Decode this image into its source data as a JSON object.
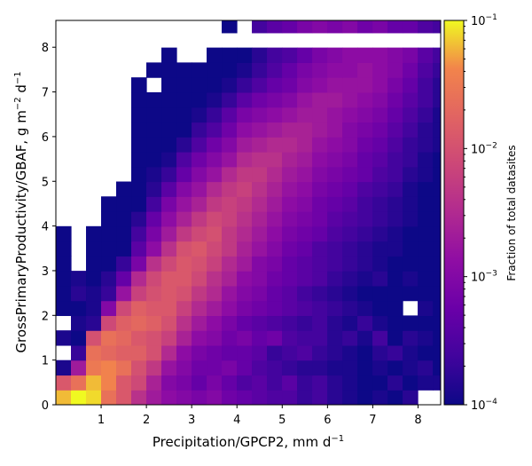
{
  "chart_data": {
    "type": "heatmap",
    "xlabel": "Precipitation/GPCP2,  mm d",
    "xlabel_sup": "−1",
    "ylabel": "GrossPrimaryProductivity/GBAF,  g m",
    "ylabel_sup1": "−2",
    "ylabel_mid": " d",
    "ylabel_sup2": "−1",
    "xlim": [
      0,
      8.5
    ],
    "ylim": [
      0,
      8.6
    ],
    "xticks": [
      1,
      2,
      3,
      4,
      5,
      6,
      7,
      8
    ],
    "yticks": [
      0,
      1,
      2,
      3,
      4,
      5,
      6,
      7,
      8
    ],
    "bin_width_x": 0.333,
    "bin_height_y": 0.333,
    "colorbar": {
      "label": "Fraction of total datasites",
      "scale": "log",
      "colormap": "plasma",
      "range": [
        0.0001,
        0.1
      ],
      "ticks": [
        {
          "base": "10",
          "exp": "−1"
        },
        {
          "base": "10",
          "exp": "−2"
        },
        {
          "base": "10",
          "exp": "−3"
        },
        {
          "base": "10",
          "exp": "−4"
        }
      ]
    },
    "grid": false,
    "note": "values are log10(fraction of total datasites); null means empty bin",
    "rows_bottom_to_top": [
      [
        -1.2,
        -1.0,
        -1.1,
        -1.6,
        -1.9,
        -2.4,
        -2.7,
        -2.9,
        -3.0,
        -3.1,
        -3.0,
        -3.2,
        -3.3,
        -3.4,
        -3.5,
        -3.5,
        -3.7,
        -3.6,
        -3.8,
        -3.9,
        -4.0,
        -3.9,
        -4.0,
        -3.8,
        null,
        null
      ],
      [
        -1.9,
        -1.6,
        -1.2,
        -1.4,
        -1.9,
        -2.1,
        -2.6,
        -3.0,
        -3.1,
        -3.3,
        -3.1,
        -3.3,
        -3.5,
        -3.4,
        -3.6,
        -3.4,
        -3.7,
        -3.6,
        -3.8,
        -3.9,
        -4.0,
        -4.0,
        -3.8,
        -4.0,
        -3.9,
        -3.9
      ],
      [
        -3.9,
        -2.7,
        -1.5,
        -1.4,
        -1.6,
        -2.0,
        -2.3,
        -2.8,
        -3.0,
        -3.2,
        -3.2,
        -3.1,
        -3.3,
        -3.5,
        -3.6,
        -3.7,
        -3.8,
        -3.8,
        -3.9,
        -3.9,
        -4.0,
        -3.9,
        -4.0,
        -3.9,
        -3.8,
        -4.0
      ],
      [
        null,
        -3.7,
        -1.6,
        -1.7,
        -1.8,
        -1.8,
        -2.0,
        -2.5,
        -2.9,
        -3.1,
        -3.2,
        -3.3,
        -3.3,
        -3.4,
        -3.7,
        -3.6,
        -3.5,
        -3.7,
        -3.8,
        -3.9,
        -4.0,
        -3.8,
        -3.7,
        -3.9,
        -4.0,
        -4.0
      ],
      [
        -3.9,
        -4.0,
        -2.0,
        -1.6,
        -1.7,
        -1.9,
        -2.0,
        -2.2,
        -2.6,
        -2.9,
        -3.0,
        -3.2,
        -3.1,
        -3.3,
        -3.2,
        -3.5,
        -3.6,
        -3.6,
        -3.8,
        -3.7,
        -3.9,
        -3.6,
        -4.0,
        -3.8,
        -3.9,
        -4.0
      ],
      [
        null,
        -3.9,
        -3.8,
        -2.1,
        -1.8,
        -1.7,
        -1.8,
        -2.0,
        -2.4,
        -2.7,
        -2.9,
        -3.1,
        -3.3,
        -3.4,
        -3.5,
        -3.6,
        -3.7,
        -3.6,
        -3.8,
        -3.9,
        -3.7,
        -3.9,
        -4.0,
        -4.0,
        -4.0,
        -4.0
      ],
      [
        -4.0,
        -4.0,
        -3.9,
        -3.0,
        -2.1,
        -1.8,
        -1.9,
        -1.9,
        -2.2,
        -2.5,
        -2.7,
        -2.9,
        -3.1,
        -3.2,
        -3.3,
        -3.4,
        -3.5,
        -3.6,
        -3.7,
        -3.8,
        -3.9,
        -4.0,
        -4.0,
        null,
        -3.9,
        -4.0
      ],
      [
        -4.0,
        -3.8,
        -3.9,
        -3.7,
        -2.8,
        -2.2,
        -2.0,
        -1.9,
        -2.0,
        -2.3,
        -2.5,
        -2.8,
        -3.0,
        -3.1,
        -3.3,
        -3.4,
        -3.6,
        -3.7,
        -3.8,
        -3.9,
        -4.0,
        -4.0,
        -4.0,
        -4.0,
        -4.0,
        -4.0
      ],
      [
        -4.0,
        -3.9,
        -4.0,
        -3.8,
        -3.3,
        -2.5,
        -2.1,
        -1.9,
        -1.9,
        -2.1,
        -2.4,
        -2.6,
        -2.9,
        -3.0,
        -3.2,
        -3.3,
        -3.4,
        -3.5,
        -3.7,
        -3.8,
        -3.9,
        -3.8,
        -4.0,
        -3.9,
        -4.0,
        -4.0
      ],
      [
        -4.0,
        null,
        -4.0,
        -4.0,
        -3.7,
        -3.1,
        -2.4,
        -2.1,
        -1.9,
        -2.0,
        -2.2,
        -2.5,
        -2.7,
        -3.0,
        -3.1,
        -3.3,
        -3.4,
        -3.5,
        -3.6,
        -3.7,
        -3.8,
        -3.9,
        -4.0,
        -4.0,
        -4.0,
        -4.0
      ],
      [
        -4.0,
        null,
        -4.0,
        -4.0,
        -4.0,
        -3.4,
        -2.9,
        -2.4,
        -2.0,
        -1.9,
        -2.1,
        -2.3,
        -2.6,
        -2.8,
        -3.0,
        -3.2,
        -3.3,
        -3.5,
        -3.6,
        -3.7,
        -3.8,
        -3.9,
        -3.9,
        -4.0,
        -4.0,
        -4.0
      ],
      [
        -4.0,
        null,
        -4.0,
        -4.0,
        -4.0,
        -3.6,
        -3.1,
        -2.7,
        -2.3,
        -2.1,
        -2.0,
        -2.3,
        -2.5,
        -2.7,
        -2.9,
        -3.1,
        -3.2,
        -3.3,
        -3.5,
        -3.6,
        -3.7,
        -3.8,
        -3.9,
        -4.0,
        -4.0,
        -4.0
      ],
      [
        null,
        null,
        null,
        -4.0,
        -4.0,
        -3.8,
        -3.3,
        -2.9,
        -2.6,
        -2.3,
        -2.1,
        -2.2,
        -2.4,
        -2.6,
        -2.8,
        -3.0,
        -3.1,
        -3.2,
        -3.4,
        -3.5,
        -3.6,
        -3.7,
        -3.8,
        -3.9,
        -4.0,
        -4.0
      ],
      [
        null,
        null,
        null,
        -4.0,
        -4.0,
        -4.0,
        -3.6,
        -3.1,
        -2.8,
        -2.6,
        -2.3,
        -2.2,
        -2.3,
        -2.5,
        -2.7,
        -2.9,
        -3.0,
        -3.2,
        -3.3,
        -3.4,
        -3.6,
        -3.7,
        -3.8,
        -3.9,
        -4.0,
        -4.0
      ],
      [
        null,
        null,
        null,
        null,
        -4.0,
        -4.0,
        -3.8,
        -3.4,
        -3.0,
        -2.8,
        -2.5,
        -2.3,
        -2.2,
        -2.4,
        -2.6,
        -2.8,
        -2.9,
        -3.1,
        -3.2,
        -3.3,
        -3.5,
        -3.6,
        -3.7,
        -3.9,
        -4.0,
        -4.0
      ],
      [
        null,
        null,
        null,
        null,
        null,
        -4.0,
        -3.9,
        -3.7,
        -3.3,
        -3.0,
        -2.8,
        -2.5,
        -2.3,
        -2.3,
        -2.5,
        -2.7,
        -2.8,
        -3.0,
        -3.1,
        -3.2,
        -3.3,
        -3.5,
        -3.6,
        -3.8,
        -3.9,
        -4.0
      ],
      [
        null,
        null,
        null,
        null,
        null,
        -4.0,
        -4.0,
        -3.9,
        -3.5,
        -3.2,
        -3.0,
        -2.8,
        -2.5,
        -2.4,
        -2.4,
        -2.6,
        -2.7,
        -2.9,
        -3.0,
        -3.1,
        -3.3,
        -3.4,
        -3.6,
        -3.7,
        -3.9,
        -4.0
      ],
      [
        null,
        null,
        null,
        null,
        null,
        -4.0,
        -4.0,
        -4.0,
        -3.8,
        -3.5,
        -3.2,
        -3.0,
        -2.7,
        -2.6,
        -2.5,
        -2.5,
        -2.6,
        -2.8,
        -2.9,
        -3.0,
        -3.2,
        -3.3,
        -3.5,
        -3.7,
        -3.8,
        -3.9
      ],
      [
        null,
        null,
        null,
        null,
        null,
        -4.0,
        -4.0,
        -4.0,
        -4.0,
        -3.7,
        -3.5,
        -3.2,
        -2.9,
        -2.8,
        -2.7,
        -2.6,
        -2.6,
        -2.7,
        -2.8,
        -3.0,
        -3.1,
        -3.2,
        -3.4,
        -3.6,
        -3.8,
        -3.9
      ],
      [
        null,
        null,
        null,
        null,
        null,
        -4.0,
        -4.0,
        -4.0,
        -4.0,
        -3.9,
        -3.7,
        -3.4,
        -3.1,
        -3.0,
        -2.9,
        -2.8,
        -2.7,
        -2.7,
        -2.8,
        -2.9,
        -3.0,
        -3.1,
        -3.3,
        -3.5,
        -3.7,
        -3.9
      ],
      [
        null,
        null,
        null,
        null,
        null,
        -4.0,
        -4.0,
        -4.0,
        -4.0,
        -4.0,
        -3.9,
        -3.7,
        -3.4,
        -3.2,
        -3.1,
        -3.0,
        -2.8,
        -2.7,
        -2.7,
        -2.8,
        -2.9,
        -3.0,
        -3.2,
        -3.4,
        -3.6,
        -3.8
      ],
      [
        null,
        null,
        null,
        null,
        null,
        -4.0,
        null,
        -4.0,
        -4.0,
        -4.0,
        -4.0,
        -3.9,
        -3.7,
        -3.5,
        -3.3,
        -3.2,
        -3.0,
        -2.9,
        -2.8,
        -2.8,
        -2.8,
        -2.9,
        -3.1,
        -3.3,
        -3.6,
        -3.8
      ],
      [
        null,
        null,
        null,
        null,
        null,
        null,
        -4.0,
        -4.0,
        -4.0,
        -4.0,
        -4.0,
        -4.0,
        -3.9,
        -3.7,
        -3.5,
        -3.3,
        -3.1,
        -3.0,
        -2.9,
        -2.9,
        -2.8,
        -2.9,
        -3.0,
        -3.2,
        -3.5,
        -3.7
      ],
      [
        null,
        null,
        null,
        null,
        null,
        null,
        null,
        -4.0,
        null,
        null,
        -4.0,
        -4.0,
        -4.0,
        -3.8,
        -3.6,
        -3.5,
        -3.3,
        -3.1,
        -3.0,
        -2.9,
        -2.9,
        -2.9,
        -3.0,
        -3.1,
        -3.4,
        -3.6
      ],
      [
        null,
        null,
        null,
        null,
        null,
        null,
        null,
        null,
        null,
        null,
        null,
        null,
        null,
        null,
        null,
        null,
        null,
        null,
        null,
        null,
        null,
        null,
        null,
        null,
        null,
        null
      ],
      [
        null,
        null,
        null,
        null,
        null,
        null,
        null,
        null,
        null,
        null,
        null,
        -4.0,
        null,
        -3.6,
        -3.4,
        -3.3,
        -3.1,
        -3.0,
        -3.1,
        -3.0,
        -3.2,
        -3.1,
        -3.3,
        -3.3,
        -3.5,
        -3.6
      ]
    ]
  }
}
